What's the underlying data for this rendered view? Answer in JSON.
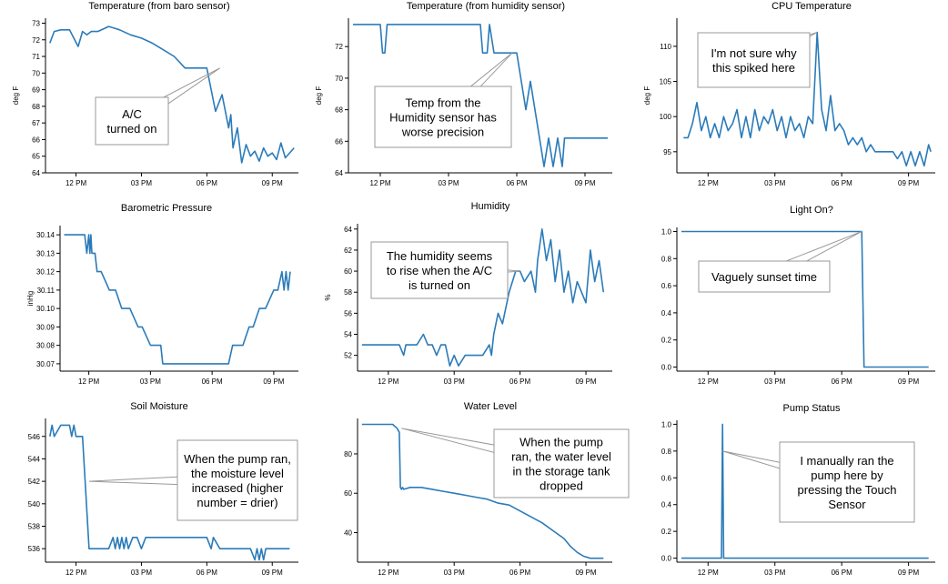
{
  "x_ticks": [
    "12 PM",
    "03 PM",
    "06 PM",
    "09 PM"
  ],
  "chart_data": [
    {
      "type": "line",
      "title": "Temperature (from baro sensor)",
      "ylabel": "deg F",
      "xlabel": "",
      "x_ticks": [
        "12 PM",
        "03 PM",
        "06 PM",
        "09 PM"
      ],
      "x_range_hours": [
        10.6,
        22.2
      ],
      "ylim": [
        64,
        73.3
      ],
      "yticks": [
        "64",
        "65",
        "66",
        "67",
        "68",
        "69",
        "70",
        "71",
        "72",
        "73"
      ],
      "series": [
        {
          "x_hours": [
            10.8,
            11.0,
            11.3,
            11.7,
            12.1,
            12.3,
            12.5,
            12.7,
            13.0,
            13.5,
            14.0,
            14.5,
            15.0,
            15.5,
            16.0,
            16.5,
            17.0,
            17.3,
            17.5,
            17.7,
            18.0,
            18.4,
            18.7,
            19.0,
            19.1,
            19.2,
            19.4,
            19.6,
            19.8,
            20.0,
            20.2,
            20.4,
            20.6,
            20.8,
            21.0,
            21.2,
            21.4,
            21.6,
            21.8,
            22.0
          ],
          "y": [
            71.8,
            72.5,
            72.6,
            72.6,
            71.6,
            72.5,
            72.3,
            72.5,
            72.5,
            72.8,
            72.6,
            72.3,
            72.1,
            71.8,
            71.4,
            71.0,
            70.3,
            70.3,
            70.3,
            70.3,
            70.3,
            67.7,
            68.7,
            66.7,
            67.5,
            65.5,
            66.7,
            64.6,
            65.7,
            65.0,
            65.3,
            64.7,
            65.5,
            65.0,
            65.2,
            64.8,
            65.8,
            64.9,
            65.2,
            65.5
          ]
        }
      ],
      "annotation": "A/C\nturned on"
    },
    {
      "type": "line",
      "title": "Temperature (from humidity sensor)",
      "ylabel": "deg F",
      "xlabel": "",
      "x_ticks": [
        "12 PM",
        "03 PM",
        "06 PM",
        "09 PM"
      ],
      "x_range_hours": [
        10.6,
        22.2
      ],
      "ylim": [
        64,
        73.8
      ],
      "yticks": [
        "64",
        "66",
        "68",
        "70",
        "72"
      ],
      "series": [
        {
          "x_hours": [
            10.8,
            12.0,
            12.1,
            12.2,
            12.3,
            12.4,
            13.0,
            14.0,
            15.0,
            16.0,
            16.4,
            16.5,
            16.6,
            16.7,
            16.8,
            17.0,
            17.5,
            17.6,
            17.8,
            18.0,
            18.2,
            18.4,
            18.6,
            18.8,
            19.0,
            19.2,
            19.4,
            19.6,
            19.8,
            20.0,
            20.1,
            20.2,
            20.3,
            20.4,
            20.5,
            20.6,
            21.0,
            22.0
          ],
          "y": [
            73.4,
            73.4,
            71.6,
            71.6,
            73.4,
            73.4,
            73.4,
            73.4,
            73.4,
            73.4,
            73.4,
            71.6,
            71.6,
            71.6,
            73.4,
            71.6,
            71.6,
            71.6,
            71.6,
            71.6,
            69.8,
            68.0,
            69.8,
            68.0,
            66.2,
            64.4,
            66.2,
            64.4,
            66.2,
            64.4,
            66.2,
            66.2,
            66.2,
            66.2,
            66.2,
            66.2,
            66.2,
            66.2
          ]
        }
      ],
      "annotation": "Temp from the\nHumidity sensor has\nworse precision"
    },
    {
      "type": "line",
      "title": "CPU Temperature",
      "ylabel": "deg F",
      "xlabel": "",
      "x_ticks": [
        "12 PM",
        "03 PM",
        "06 PM",
        "09 PM"
      ],
      "x_range_hours": [
        10.6,
        22.2
      ],
      "ylim": [
        92,
        114
      ],
      "yticks": [
        "95",
        "100",
        "105",
        "110"
      ],
      "series": [
        {
          "x_hours": [
            10.9,
            11.1,
            11.3,
            11.5,
            11.7,
            11.9,
            12.1,
            12.3,
            12.5,
            12.7,
            12.9,
            13.1,
            13.3,
            13.5,
            13.7,
            13.9,
            14.1,
            14.3,
            14.5,
            14.7,
            14.9,
            15.1,
            15.3,
            15.5,
            15.7,
            15.9,
            16.1,
            16.3,
            16.5,
            16.7,
            16.9,
            17.1,
            17.3,
            17.5,
            17.7,
            17.9,
            18.1,
            18.3,
            18.5,
            18.7,
            18.9,
            19.1,
            19.3,
            19.5,
            19.7,
            19.9,
            20.1,
            20.3,
            20.5,
            20.7,
            20.9,
            21.1,
            21.3,
            21.5,
            21.7,
            21.9,
            22.0
          ],
          "y": [
            97,
            97,
            99,
            102,
            98,
            100,
            97,
            99,
            97,
            100,
            98,
            99,
            101,
            97,
            100,
            97,
            101,
            98,
            100,
            99,
            101,
            98,
            100,
            97,
            100,
            98,
            99,
            97,
            100,
            99,
            112,
            101,
            98,
            103,
            98,
            99,
            98,
            96,
            97,
            96,
            97,
            95,
            96,
            95,
            95,
            95,
            95,
            95,
            94,
            95,
            93,
            95,
            93,
            95,
            93,
            96,
            95
          ]
        }
      ],
      "annotation": "I'm not sure why\nthis spiked here"
    },
    {
      "type": "line",
      "title": "Barometric Pressure",
      "ylabel": "inHg",
      "xlabel": "",
      "x_ticks": [
        "12 PM",
        "03 PM",
        "06 PM",
        "09 PM"
      ],
      "x_range_hours": [
        10.6,
        22.2
      ],
      "ylim": [
        30.066,
        30.145
      ],
      "yticks": [
        "30.07",
        "30.08",
        "30.09",
        "30.10",
        "30.11",
        "30.12",
        "30.13",
        "30.14"
      ],
      "series": [
        {
          "x_hours": [
            10.8,
            11.8,
            11.9,
            12.0,
            12.05,
            12.1,
            12.15,
            12.3,
            12.4,
            12.6,
            13.0,
            13.3,
            13.6,
            14.0,
            14.4,
            14.6,
            15.0,
            15.5,
            15.6,
            16.0,
            17.0,
            18.0,
            18.8,
            19.0,
            19.3,
            19.5,
            19.8,
            20.0,
            20.3,
            20.6,
            21.0,
            21.2,
            21.4,
            21.5,
            21.6,
            21.7,
            21.8
          ],
          "y": [
            30.14,
            30.14,
            30.13,
            30.14,
            30.13,
            30.14,
            30.13,
            30.13,
            30.12,
            30.12,
            30.11,
            30.11,
            30.1,
            30.1,
            30.09,
            30.09,
            30.08,
            30.08,
            30.07,
            30.07,
            30.07,
            30.07,
            30.07,
            30.08,
            30.08,
            30.08,
            30.09,
            30.09,
            30.1,
            30.1,
            30.11,
            30.11,
            30.12,
            30.11,
            30.12,
            30.11,
            30.12
          ]
        }
      ],
      "annotation": ""
    },
    {
      "type": "line",
      "title": "Humidity",
      "ylabel": "%",
      "xlabel": "",
      "x_ticks": [
        "12 PM",
        "03 PM",
        "06 PM",
        "09 PM"
      ],
      "x_range_hours": [
        10.6,
        22.2
      ],
      "ylim": [
        50.5,
        64.5
      ],
      "yticks": [
        "52",
        "54",
        "56",
        "58",
        "60",
        "62",
        "64"
      ],
      "series": [
        {
          "x_hours": [
            10.8,
            12.0,
            12.5,
            12.7,
            12.8,
            13.0,
            13.3,
            13.6,
            13.8,
            14.0,
            14.2,
            14.4,
            14.6,
            14.8,
            15.0,
            15.2,
            15.5,
            15.8,
            16.0,
            16.3,
            16.6,
            16.7,
            16.8,
            17.0,
            17.2,
            17.5,
            17.8,
            18.0,
            18.2,
            18.5,
            18.7,
            18.8,
            19.0,
            19.2,
            19.4,
            19.6,
            19.8,
            20.0,
            20.2,
            20.4,
            20.6,
            20.8,
            21.0,
            21.2,
            21.4,
            21.6,
            21.8
          ],
          "y": [
            53,
            53,
            53,
            52,
            53,
            53,
            53,
            54,
            53,
            53,
            52,
            53,
            53,
            51,
            52,
            51,
            52,
            52,
            52,
            52,
            53,
            52,
            54,
            56,
            55,
            58,
            60,
            60,
            59,
            60,
            58,
            61,
            64,
            61,
            63,
            59,
            62,
            58,
            60,
            57,
            59,
            58,
            57,
            62,
            59,
            61,
            58
          ]
        }
      ],
      "annotation": "The humidity seems\nto rise when the A/C\nis turned on"
    },
    {
      "type": "line",
      "title": "Light On?",
      "ylabel": "",
      "xlabel": "",
      "x_ticks": [
        "12 PM",
        "03 PM",
        "06 PM",
        "09 PM"
      ],
      "x_range_hours": [
        10.6,
        22.2
      ],
      "ylim": [
        -0.03,
        1.03
      ],
      "yticks": [
        "0.0",
        "0.2",
        "0.4",
        "0.6",
        "0.8",
        "1.0"
      ],
      "series": [
        {
          "x_hours": [
            10.8,
            18.9,
            19.0,
            21.9
          ],
          "y": [
            1,
            1,
            0,
            0
          ]
        }
      ],
      "annotation": "Vaguely sunset time"
    },
    {
      "type": "line",
      "title": "Soil Moisture",
      "ylabel": "",
      "xlabel": "",
      "x_ticks": [
        "12 PM",
        "03 PM",
        "06 PM",
        "09 PM"
      ],
      "x_range_hours": [
        10.6,
        22.2
      ],
      "ylim": [
        534.8,
        547.6
      ],
      "yticks": [
        "536",
        "538",
        "540",
        "542",
        "544",
        "546"
      ],
      "series": [
        {
          "x_hours": [
            10.8,
            10.9,
            11.0,
            11.3,
            11.7,
            11.8,
            11.9,
            12.0,
            12.1,
            12.3,
            12.6,
            12.8,
            13.0,
            13.5,
            13.7,
            13.8,
            13.9,
            14.0,
            14.1,
            14.2,
            14.3,
            14.4,
            14.6,
            14.8,
            15.0,
            15.2,
            15.5,
            16.0,
            17.0,
            18.0,
            18.2,
            18.3,
            18.6,
            19.0,
            19.5,
            20.0,
            20.2,
            20.3,
            20.4,
            20.5,
            20.6,
            20.7,
            20.8,
            21.0,
            21.5,
            21.8
          ],
          "y": [
            546,
            547,
            546,
            547,
            547,
            546,
            547,
            546,
            546,
            546,
            536,
            536,
            536,
            536,
            537,
            536,
            537,
            536,
            537,
            536,
            537,
            536,
            537,
            537,
            536,
            537,
            537,
            537,
            537,
            537,
            536,
            537,
            536,
            536,
            536,
            536,
            535,
            536,
            535,
            536,
            535,
            536,
            536,
            536,
            536,
            536
          ]
        }
      ],
      "annotation": "When the pump ran,\nthe moisture level\nincreased (higher\nnumber = drier)"
    },
    {
      "type": "line",
      "title": "Water Level",
      "ylabel": "",
      "xlabel": "",
      "x_ticks": [
        "12 PM",
        "03 PM",
        "06 PM",
        "09 PM"
      ],
      "x_range_hours": [
        10.6,
        22.2
      ],
      "ylim": [
        25,
        98
      ],
      "yticks": [
        "40",
        "60",
        "80"
      ],
      "series": [
        {
          "x_hours": [
            10.8,
            11.5,
            12.0,
            12.2,
            12.4,
            12.5,
            12.55,
            12.6,
            12.65,
            12.7,
            13.0,
            13.5,
            14.0,
            14.5,
            15.0,
            15.5,
            16.0,
            16.5,
            17.0,
            17.5,
            18.0,
            18.5,
            19.0,
            19.5,
            20.0,
            20.3,
            20.6,
            20.9,
            21.2,
            21.5,
            21.8
          ],
          "y": [
            95,
            95,
            95,
            95,
            93,
            91,
            63,
            62,
            63,
            62,
            63,
            63,
            62,
            61,
            60,
            59,
            58,
            57,
            55,
            54,
            51,
            48,
            45,
            41,
            37,
            33,
            30,
            28,
            27,
            27,
            27
          ]
        }
      ],
      "annotation": "When the pump\nran, the water level\nin the storage tank\ndropped"
    },
    {
      "type": "line",
      "title": "Pump Status",
      "ylabel": "",
      "xlabel": "",
      "x_ticks": [
        "12 PM",
        "03 PM",
        "06 PM",
        "09 PM"
      ],
      "x_range_hours": [
        10.6,
        22.2
      ],
      "ylim": [
        -0.03,
        1.03
      ],
      "yticks": [
        "0.0",
        "0.2",
        "0.4",
        "0.6",
        "0.8",
        "1.0"
      ],
      "series": [
        {
          "x_hours": [
            10.8,
            12.6,
            12.65,
            12.7,
            21.9
          ],
          "y": [
            0,
            0,
            1,
            0,
            0
          ]
        }
      ],
      "annotation": "I manually ran the\npump here by\npressing the Touch\nSensor"
    }
  ]
}
